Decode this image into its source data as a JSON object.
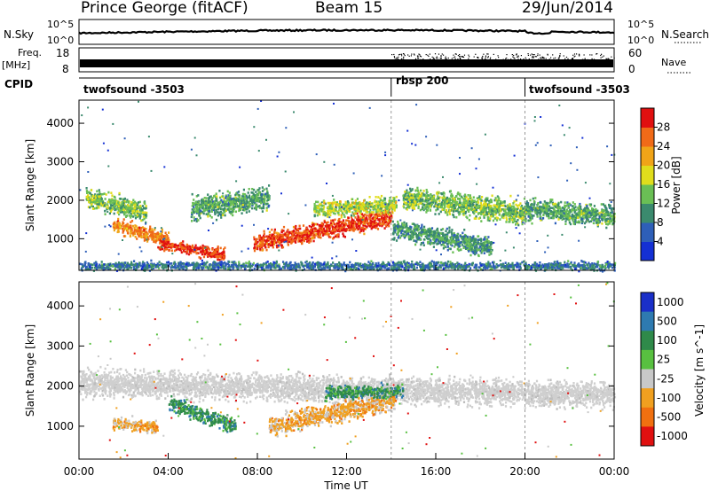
{
  "header": {
    "station": "Prince George (fitACF)",
    "beam": "Beam 15",
    "date": "29/Jun/2014"
  },
  "strips": {
    "nsky_label": "N.Sky",
    "nsearch_label": "N.Search",
    "noise_ticks": [
      "10^5",
      "10^0"
    ],
    "freq_label_1": "Freq.",
    "freq_label_2": "[MHz]",
    "freq_ticks": [
      "18",
      "8"
    ],
    "nave_label": "Nave",
    "nave_ticks": [
      "60",
      "0"
    ],
    "cpid_label": "CPID",
    "cpid_segments": [
      {
        "label": "twofsound -3503",
        "start_hour": 0,
        "end_hour": 14.0
      },
      {
        "label": "rbsp 200",
        "start_hour": 14.0,
        "end_hour": 20.0
      },
      {
        "label": "twofsound -3503",
        "start_hour": 20.0,
        "end_hour": 24.0
      }
    ]
  },
  "chart_data": [
    {
      "type": "heatmap",
      "title": "",
      "ylabel": "Slant Range [km]",
      "xlabel": "",
      "xlim": [
        0,
        24
      ],
      "ylim": [
        180,
        4600
      ],
      "yticks": [
        1000,
        2000,
        3000,
        4000
      ],
      "colorbar": {
        "label": "Power [dB]",
        "ticks": [
          4,
          8,
          12,
          16,
          20,
          24,
          28
        ],
        "range": [
          0,
          32
        ],
        "colors": [
          "#1430d4",
          "#2e5fb8",
          "#3b8a6e",
          "#6abf55",
          "#e0dd1c",
          "#f0a418",
          "#f06a18",
          "#e01010"
        ]
      },
      "bands": [
        {
          "start": 0.3,
          "end": 3.0,
          "center_start": 2100,
          "center_end": 1700,
          "width": 300,
          "value": 12
        },
        {
          "start": 1.5,
          "end": 4.0,
          "center_start": 1400,
          "center_end": 1000,
          "width": 220,
          "value": 22
        },
        {
          "start": 3.5,
          "end": 6.5,
          "center_start": 900,
          "center_end": 600,
          "width": 180,
          "value": 27
        },
        {
          "start": 5.0,
          "end": 8.5,
          "center_start": 1800,
          "center_end": 2100,
          "width": 350,
          "value": 10
        },
        {
          "start": 7.8,
          "end": 14.0,
          "center_start": 900,
          "center_end": 1600,
          "width": 280,
          "value": 26
        },
        {
          "start": 10.5,
          "end": 14.2,
          "center_start": 1800,
          "center_end": 1900,
          "width": 250,
          "value": 14
        },
        {
          "start": 14.0,
          "end": 18.5,
          "center_start": 1300,
          "center_end": 800,
          "width": 300,
          "value": 9
        },
        {
          "start": 14.5,
          "end": 20.0,
          "center_start": 2100,
          "center_end": 1700,
          "width": 350,
          "value": 12
        },
        {
          "start": 20.0,
          "end": 24.0,
          "center_start": 1800,
          "center_end": 1600,
          "width": 320,
          "value": 10
        },
        {
          "start": 0.0,
          "end": 24.0,
          "center_start": 320,
          "center_end": 320,
          "width": 130,
          "value": 6
        }
      ]
    },
    {
      "type": "heatmap",
      "title": "",
      "ylabel": "Slant Range [km]",
      "xlabel": "Time UT",
      "xlim": [
        0,
        24
      ],
      "ylim": [
        180,
        4600
      ],
      "yticks": [
        1000,
        2000,
        3000,
        4000
      ],
      "xticks": [
        "00:00",
        "04:00",
        "08:00",
        "12:00",
        "16:00",
        "20:00",
        "00:00"
      ],
      "colorbar": {
        "label": "Velocity [m s^-1]",
        "ticks": [
          "1000",
          "500",
          "100",
          "25",
          "-25",
          "-100",
          "-500",
          "-1000"
        ],
        "colors": [
          "#1a2fc8",
          "#2e7ab0",
          "#2f8a4a",
          "#58c040",
          "#c8c8c8",
          "#f0a020",
          "#f07010",
          "#e01010"
        ]
      },
      "bands": [
        {
          "start": 0.0,
          "end": 24.0,
          "center_start": 2100,
          "center_end": 1800,
          "width": 380,
          "value": "ground"
        },
        {
          "start": 1.5,
          "end": 3.5,
          "center_start": 1100,
          "center_end": 1000,
          "width": 200,
          "value": "-100"
        },
        {
          "start": 4.0,
          "end": 7.0,
          "center_start": 1600,
          "center_end": 1000,
          "width": 220,
          "value": "100"
        },
        {
          "start": 8.5,
          "end": 14.2,
          "center_start": 1000,
          "center_end": 1700,
          "width": 300,
          "value": "-100"
        },
        {
          "start": 11.0,
          "end": 14.5,
          "center_start": 1850,
          "center_end": 1900,
          "width": 200,
          "value": "100"
        }
      ]
    }
  ]
}
